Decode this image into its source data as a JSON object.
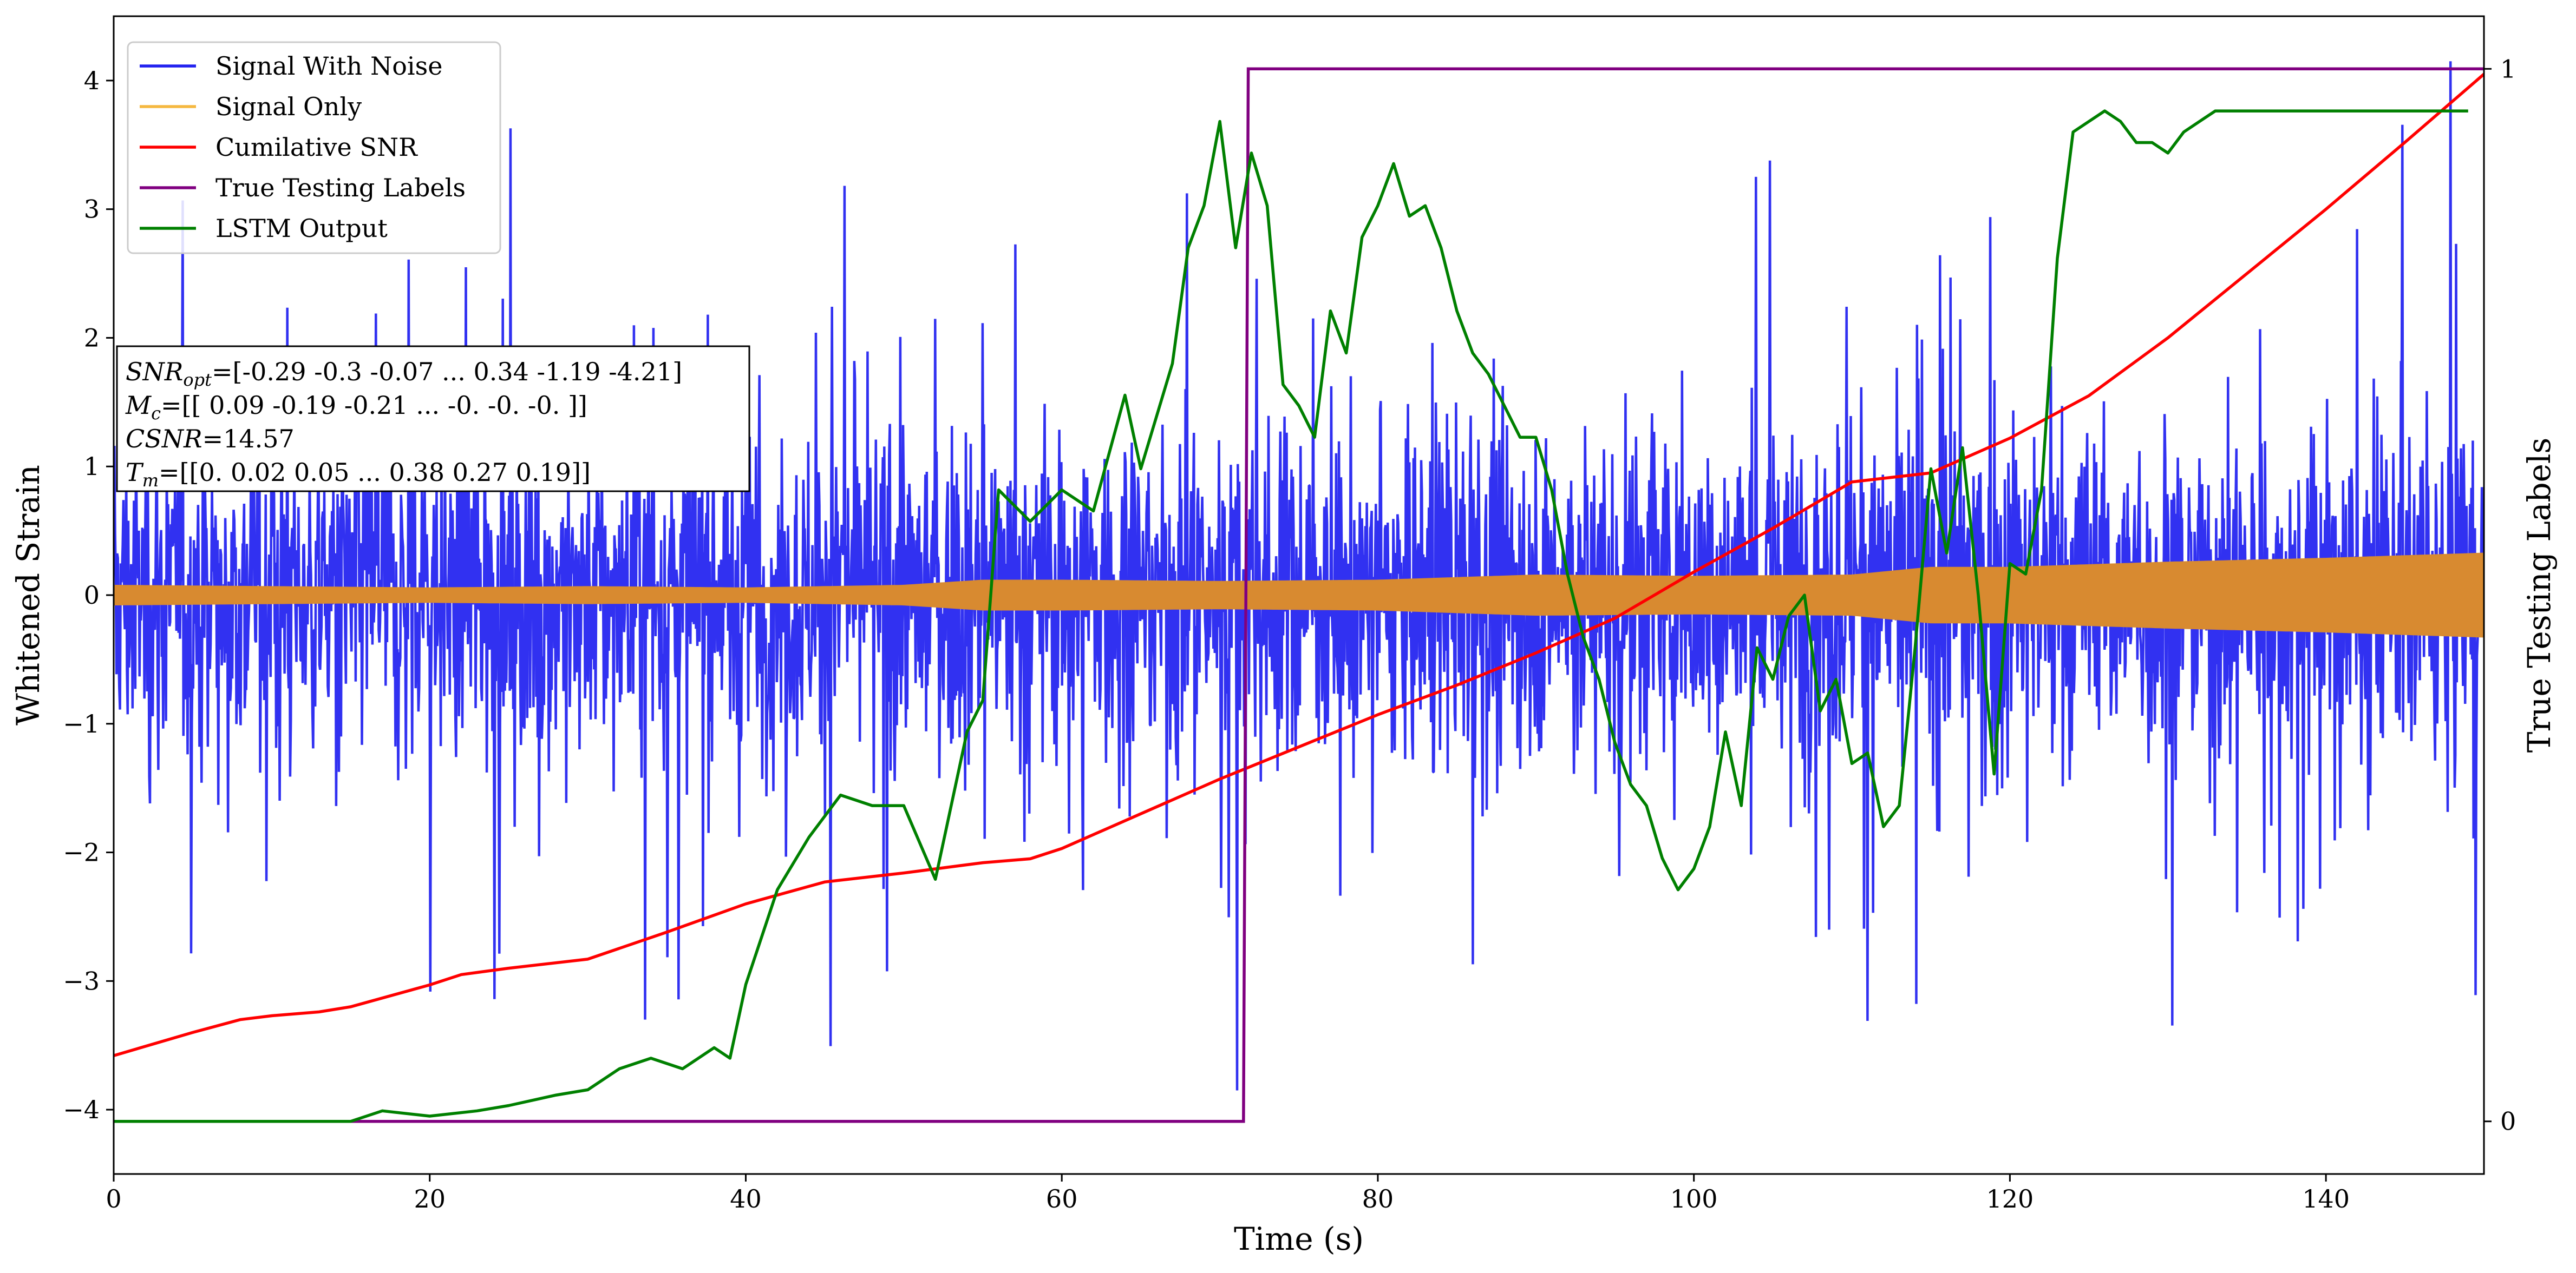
{
  "chart_data": {
    "type": "line",
    "xlabel": "Time (s)",
    "ylabel": "Whitened Strain",
    "y2label": "True Testing Labels",
    "xlim": [
      0,
      150
    ],
    "ylim": [
      -4.5,
      4.5
    ],
    "y2lim": [
      -0.05,
      1.05
    ],
    "x_ticks": [
      0,
      20,
      40,
      60,
      80,
      100,
      120,
      140
    ],
    "y_ticks": [
      -4,
      -3,
      -2,
      -1,
      0,
      1,
      2,
      3,
      4
    ],
    "y_tick_labels": [
      "−4",
      "−3",
      "−2",
      "−1",
      "0",
      "1",
      "2",
      "3",
      "4"
    ],
    "y2_ticks": [
      0,
      1
    ],
    "grid": false,
    "legend_placement": "top-left",
    "annotation_lines": [
      {
        "label": "SNR",
        "sub": "opt",
        "value": "=[-0.29 -0.3  -0.07 ...  0.34 -1.19 -4.21]"
      },
      {
        "label": "M",
        "sub": "c",
        "value": "=[[ 0.09 -0.19 -0.21 ... -0.   -0.   -0.  ]]"
      },
      {
        "label": "CSNR",
        "sub": "",
        "value": "=14.57"
      },
      {
        "label": "T",
        "sub": "m",
        "value": "=[[0.   0.02 0.05 ... 0.38 0.27 0.19]]"
      }
    ],
    "series": [
      {
        "name": "Signal With Noise",
        "color": "#2020f0",
        "axis": "left",
        "style": "noise",
        "description_values": {
          "core_band": [
            -1.6,
            1.6
          ],
          "spike_min": -3.9,
          "spike_max": 4.15,
          "t_range": [
            0,
            150
          ]
        }
      },
      {
        "name": "Signal Only",
        "color": "#d88a30",
        "legend_color": "#f5b841",
        "axis": "left",
        "style": "band",
        "envelope": {
          "x": [
            0,
            10,
            20,
            30,
            40,
            50,
            55,
            60,
            70,
            80,
            90,
            100,
            110,
            115,
            120,
            130,
            140,
            150
          ],
          "amp": [
            0.08,
            0.07,
            0.06,
            0.07,
            0.06,
            0.08,
            0.12,
            0.12,
            0.11,
            0.12,
            0.16,
            0.15,
            0.16,
            0.22,
            0.22,
            0.26,
            0.29,
            0.33
          ]
        }
      },
      {
        "name": "Cumilative SNR",
        "color": "#ff0000",
        "axis": "left",
        "x": [
          0,
          5,
          8,
          10,
          13,
          15,
          20,
          22,
          25,
          30,
          35,
          40,
          45,
          50,
          55,
          58,
          60,
          65,
          70,
          75,
          80,
          85,
          90,
          95,
          100,
          105,
          110,
          115,
          120,
          125,
          130,
          135,
          140,
          145,
          150
        ],
        "y": [
          -3.58,
          -3.4,
          -3.3,
          -3.27,
          -3.24,
          -3.2,
          -3.03,
          -2.95,
          -2.9,
          -2.83,
          -2.62,
          -2.4,
          -2.23,
          -2.16,
          -2.08,
          -2.05,
          -1.97,
          -1.7,
          -1.43,
          -1.18,
          -0.93,
          -0.7,
          -0.45,
          -0.18,
          0.18,
          0.52,
          0.88,
          0.95,
          1.22,
          1.55,
          2.0,
          2.5,
          3.0,
          3.52,
          4.05
        ]
      },
      {
        "name": "True Testing Labels",
        "color": "#800080",
        "axis": "right",
        "x": [
          0,
          71.5,
          71.8,
          150
        ],
        "y": [
          0,
          0,
          1,
          1
        ]
      },
      {
        "name": "LSTM Output",
        "color": "#008000",
        "axis": "right",
        "x": [
          0,
          15,
          17,
          20,
          23,
          25,
          28,
          30,
          32,
          34,
          36,
          38,
          39,
          40,
          42,
          44,
          46,
          48,
          50,
          52,
          54,
          55,
          56,
          58,
          60,
          62,
          64,
          65,
          67,
          68,
          69,
          70,
          71,
          72,
          73,
          74,
          75,
          76,
          77,
          78,
          79,
          80,
          81,
          82,
          83,
          84,
          85,
          86,
          87,
          88,
          89,
          90,
          91,
          92,
          93,
          94,
          95,
          96,
          97,
          98,
          99,
          100,
          101,
          102,
          103,
          104,
          105,
          106,
          107,
          108,
          109,
          110,
          111,
          112,
          113,
          114,
          115,
          116,
          117,
          118,
          119,
          120,
          121,
          122,
          123,
          124,
          125,
          126,
          127,
          128,
          129,
          130,
          131,
          132,
          133,
          135,
          140,
          145,
          149
        ],
        "y": [
          0,
          0,
          0.01,
          0.005,
          0.01,
          0.015,
          0.025,
          0.03,
          0.05,
          0.06,
          0.05,
          0.07,
          0.06,
          0.13,
          0.22,
          0.27,
          0.31,
          0.3,
          0.3,
          0.23,
          0.37,
          0.4,
          0.6,
          0.57,
          0.6,
          0.58,
          0.69,
          0.62,
          0.72,
          0.83,
          0.87,
          0.95,
          0.83,
          0.92,
          0.87,
          0.7,
          0.68,
          0.65,
          0.77,
          0.73,
          0.84,
          0.87,
          0.91,
          0.86,
          0.87,
          0.83,
          0.77,
          0.73,
          0.71,
          0.68,
          0.65,
          0.65,
          0.6,
          0.52,
          0.46,
          0.42,
          0.36,
          0.32,
          0.3,
          0.25,
          0.22,
          0.24,
          0.28,
          0.37,
          0.3,
          0.45,
          0.42,
          0.48,
          0.5,
          0.39,
          0.42,
          0.34,
          0.35,
          0.28,
          0.3,
          0.45,
          0.62,
          0.54,
          0.64,
          0.5,
          0.33,
          0.53,
          0.52,
          0.6,
          0.82,
          0.94,
          0.95,
          0.96,
          0.95,
          0.93,
          0.93,
          0.92,
          0.94,
          0.95,
          0.96,
          0.96,
          0.96,
          0.96,
          0.96
        ]
      }
    ]
  }
}
